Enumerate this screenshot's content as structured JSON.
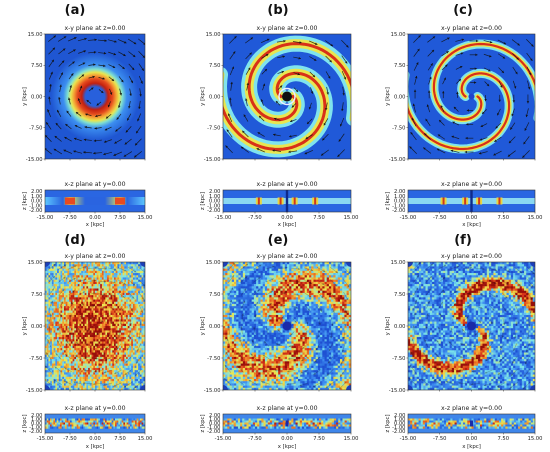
{
  "panels": [
    {
      "label": "(a)",
      "xy_title": "x-y plane at z=0.00",
      "xz_title": "x-z plane at y=0.00",
      "pattern": "ring"
    },
    {
      "label": "(b)",
      "xy_title": "x-y plane at z=0.00",
      "xz_title": "x-z plane at y=0.00",
      "pattern": "spiral-smooth"
    },
    {
      "label": "(c)",
      "xy_title": "x-y plane at z=0.00",
      "xz_title": "x-z plane at y=0.00",
      "pattern": "spiral-thin"
    },
    {
      "label": "(d)",
      "xy_title": "x-y plane at z=0.00",
      "xz_title": "x-z plane at y=0.00",
      "pattern": "noise-dense"
    },
    {
      "label": "(e)",
      "xy_title": "x-y plane at z=0.00",
      "xz_title": "x-z plane at y=0.00",
      "pattern": "noise-spiral"
    },
    {
      "label": "(f)",
      "xy_title": "x-y plane at z=0.00",
      "xz_title": "x-z plane at y=0.00",
      "pattern": "noise-spiral-sharp"
    }
  ],
  "axes": {
    "x_ticks": [
      "-15.00",
      "-7.50",
      "0.00",
      "7.50",
      "15.00"
    ],
    "y_ticks": [
      "15.00",
      "7.50",
      "0.00",
      "-7.50",
      "-15.00"
    ],
    "z_ticks": [
      "2.00",
      "1.00",
      "0.00",
      "-1.00",
      "-2.00"
    ],
    "xlabel": "x [kpc]",
    "ylabel": "y [kpc]",
    "zlabel": "z [kpc]"
  },
  "colors": {
    "background": "#1e5bd6",
    "low": "#2a64e0",
    "mid": "#7fe0ff",
    "yellow": "#f2e04a",
    "orange": "#f0782a",
    "high": "#b01a10",
    "arrow": "#111111"
  }
}
